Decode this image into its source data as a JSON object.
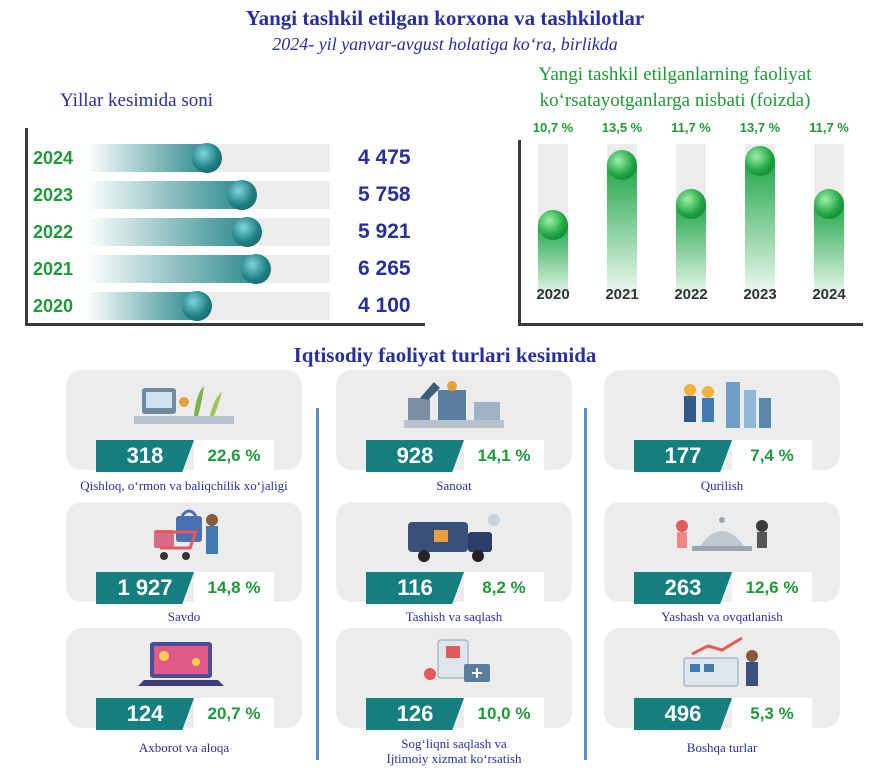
{
  "header": {
    "title": "Yangi tashkil etilgan korxona va tashkilotlar",
    "subtitle": "2024- yil yanvar-avgust holatiga ko‘ra, birlikda"
  },
  "colors": {
    "navy": "#2b2f9e",
    "green": "#1f9a3a",
    "teal": "#157f80",
    "card_bg": "#ececec"
  },
  "chart_data": [
    {
      "type": "bar",
      "orientation": "horizontal",
      "title": "Yillar kesimida soni",
      "categories": [
        "2024",
        "2023",
        "2022",
        "2021",
        "2020"
      ],
      "values": [
        4475,
        5758,
        5921,
        6265,
        4100
      ],
      "value_labels": [
        "4 475",
        "5 758",
        "5 921",
        "6 265",
        "4 100"
      ],
      "xlim": [
        0,
        9000
      ]
    },
    {
      "type": "bar",
      "orientation": "vertical",
      "title": "Yangi tashkil etilganlarning faoliyat ko‘rsatayotganlarga nisbati (foizda)",
      "title_lines": [
        "Yangi tashkil etilganlarning faoliyat",
        "ko‘rsatayotganlarga nisbati (foizda)"
      ],
      "categories": [
        "2020",
        "2021",
        "2022",
        "2023",
        "2024"
      ],
      "values": [
        10.7,
        13.5,
        11.7,
        13.7,
        11.7
      ],
      "value_labels": [
        "10,7 %",
        "13,5 %",
        "11,7 %",
        "13,7 %",
        "11,7 %"
      ],
      "ylim": [
        7,
        14.5
      ]
    }
  ],
  "sectors": {
    "heading": "Iqtisodiy faoliyat turlari kesimida",
    "items": [
      {
        "count": "318",
        "pct": "22,6 %",
        "label": "Qishloq, o‘rmon va baliqchilik xo‘jaligi",
        "icon": "agriculture-icon"
      },
      {
        "count": "928",
        "pct": "14,1 %",
        "label": "Sanoat",
        "icon": "factory-icon"
      },
      {
        "count": "177",
        "pct": "7,4 %",
        "label": "Qurilish",
        "icon": "construction-icon"
      },
      {
        "count": "1 927",
        "pct": "14,8 %",
        "label": "Savdo",
        "icon": "shopping-icon"
      },
      {
        "count": "116",
        "pct": "8,2 %",
        "label": "Tashish va saqlash",
        "icon": "delivery-truck-icon"
      },
      {
        "count": "263",
        "pct": "12,6 %",
        "label": "Yashash va ovqatlanish",
        "icon": "food-service-icon"
      },
      {
        "count": "124",
        "pct": "20,7 %",
        "label": "Axborot va aloqa",
        "icon": "it-laptop-icon"
      },
      {
        "count": "126",
        "pct": "10,0 %",
        "label_lines": [
          "Sog‘liqni saqlash va",
          "Ijtimoiy xizmat ko‘rsatish"
        ],
        "icon": "healthcare-icon"
      },
      {
        "count": "496",
        "pct": "5,3 %",
        "label": "Boshqa turlar",
        "icon": "analytics-icon"
      }
    ]
  }
}
